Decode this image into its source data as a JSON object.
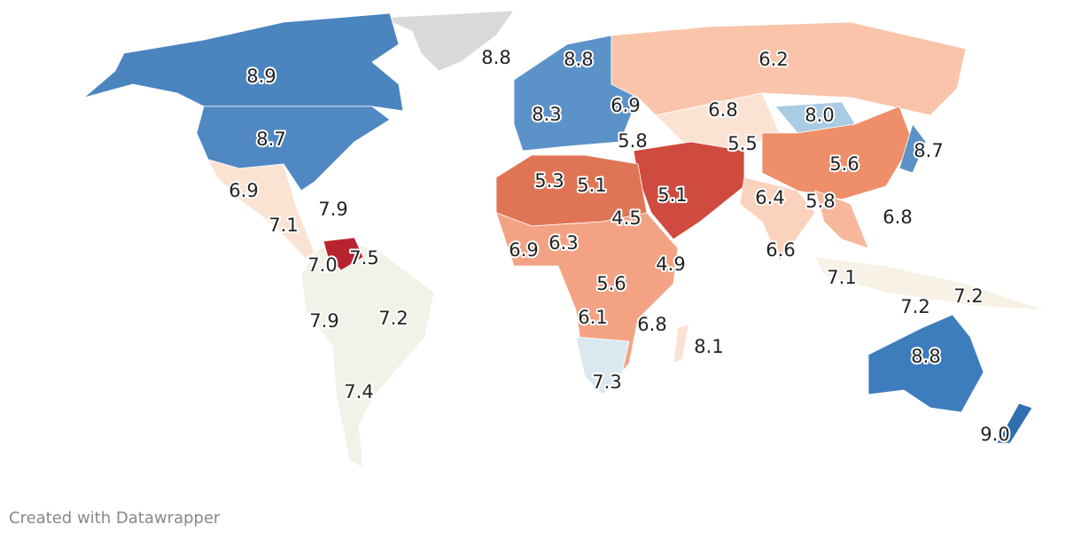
{
  "values": [
    8.9,
    8.8,
    8.8,
    6.2,
    6.9,
    6.8,
    8.0,
    8.3,
    8.7,
    5.8,
    5.5,
    8.7,
    5.6,
    5.3,
    5.1,
    5.1,
    6.4,
    5.8,
    6.9,
    7.9,
    4.5,
    6.8,
    7.1,
    6.9,
    6.3,
    6.6,
    7.0,
    7.5,
    4.9,
    7.1,
    5.6,
    7.2,
    7.2,
    7.9,
    7.2,
    6.1,
    6.8,
    8.1,
    8.8,
    7.3,
    7.4,
    9.0
  ],
  "value_labels": [
    "8.9",
    "8.8",
    "8.8",
    "6.2",
    "6.9",
    "6.8",
    "8.0",
    "8.3",
    "8.7",
    "5.8",
    "5.5",
    "8.7",
    "5.6",
    "5.3",
    "5.1",
    "5.1",
    "6.4",
    "5.8",
    "6.9",
    "7.9",
    "4.5",
    "6.8",
    "7.1",
    "6.9",
    "6.3",
    "6.6",
    "7.0",
    "7.5",
    "4.9",
    "7.1",
    "5.6",
    "7.2",
    "7.2",
    "7.9",
    "7.2",
    "6.1",
    "6.8",
    "8.1",
    "8.8",
    "7.3",
    "7.4",
    "9.0"
  ],
  "footer": "Created with Datawrapper"
}
